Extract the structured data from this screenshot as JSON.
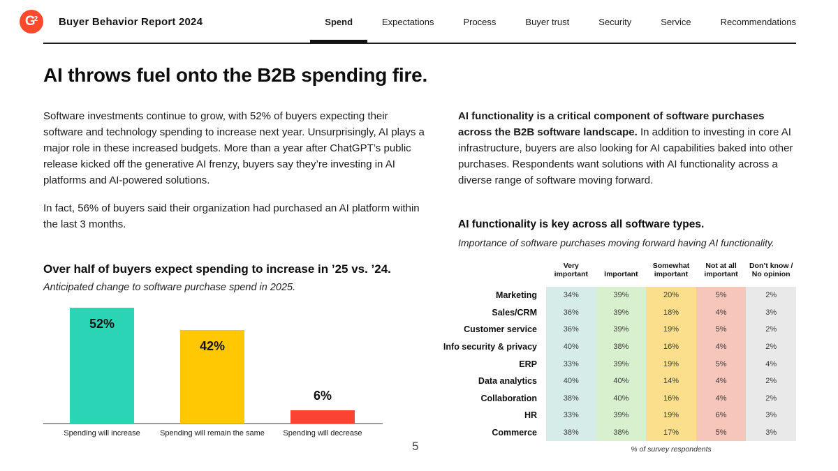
{
  "header": {
    "logo": "G",
    "logo_sup": "2",
    "title": "Buyer Behavior Report 2024",
    "tabs": [
      {
        "label": "Spend",
        "active": true
      },
      {
        "label": "Expectations",
        "active": false
      },
      {
        "label": "Process",
        "active": false
      },
      {
        "label": "Buyer trust",
        "active": false
      },
      {
        "label": "Security",
        "active": false
      },
      {
        "label": "Service",
        "active": false
      },
      {
        "label": "Recommendations",
        "active": false
      }
    ]
  },
  "main": {
    "title": "AI throws fuel onto the B2B spending fire.",
    "intro_left": {
      "p1": "Software investments continue to grow, with 52% of buyers expecting their software and technology spending to increase next year. Unsurprisingly, AI plays a major role in these increased budgets. More than a year after ChatGPT’s public release kicked off the generative AI frenzy, buyers say they’re investing in AI platforms and AI-powered solutions.",
      "p2": "In fact, 56% of buyers said their organization had purchased an AI platform within the last 3 months."
    },
    "intro_right": {
      "bold": "AI functionality is a critical component of software purchases across the B2B software landscape.",
      "rest": "In addition to investing in core AI infrastructure, buyers are also looking for AI capabilities baked into other purchases. Respondents want solutions with AI functionality across a diverse range of software moving forward."
    }
  },
  "page_number": "5",
  "chart_data": [
    {
      "type": "bar",
      "title": "Over half of buyers expect spending to increase in ’25 vs. ’24.",
      "subtitle": "Anticipated change to software purchase spend in 2025.",
      "categories": [
        "Spending will increase",
        "Spending will remain the same",
        "Spending will decrease"
      ],
      "values": [
        52,
        42,
        6
      ],
      "unit": "%",
      "colors": [
        "#2BD4B4",
        "#FFC803",
        "#FB4332"
      ],
      "ylim": [
        0,
        52
      ],
      "grid": false,
      "value_labels": "shown"
    },
    {
      "type": "heatmap",
      "title": "AI functionality is key across all software types.",
      "subtitle": "Importance of software purchases moving forward having AI functionality.",
      "columns": [
        "Very important",
        "Important",
        "Somewhat important",
        "Not at all important",
        "Don’t know / No opinion"
      ],
      "column_colors": [
        "#D6ECE8",
        "#D9F0CE",
        "#FBDF8C",
        "#F7C6BB",
        "#E9E9E9"
      ],
      "rows": [
        "Marketing",
        "Sales/CRM",
        "Customer service",
        "Info security & privacy",
        "ERP",
        "Data analytics",
        "Collaboration",
        "HR",
        "Commerce"
      ],
      "values": [
        [
          34,
          39,
          20,
          5,
          2
        ],
        [
          36,
          39,
          18,
          4,
          3
        ],
        [
          36,
          39,
          19,
          5,
          2
        ],
        [
          40,
          38,
          16,
          4,
          2
        ],
        [
          33,
          39,
          19,
          5,
          4
        ],
        [
          40,
          40,
          14,
          4,
          2
        ],
        [
          38,
          40,
          16,
          4,
          2
        ],
        [
          33,
          39,
          19,
          6,
          3
        ],
        [
          38,
          38,
          17,
          5,
          3
        ]
      ],
      "unit": "%",
      "footnote": "% of survey respondents"
    }
  ]
}
